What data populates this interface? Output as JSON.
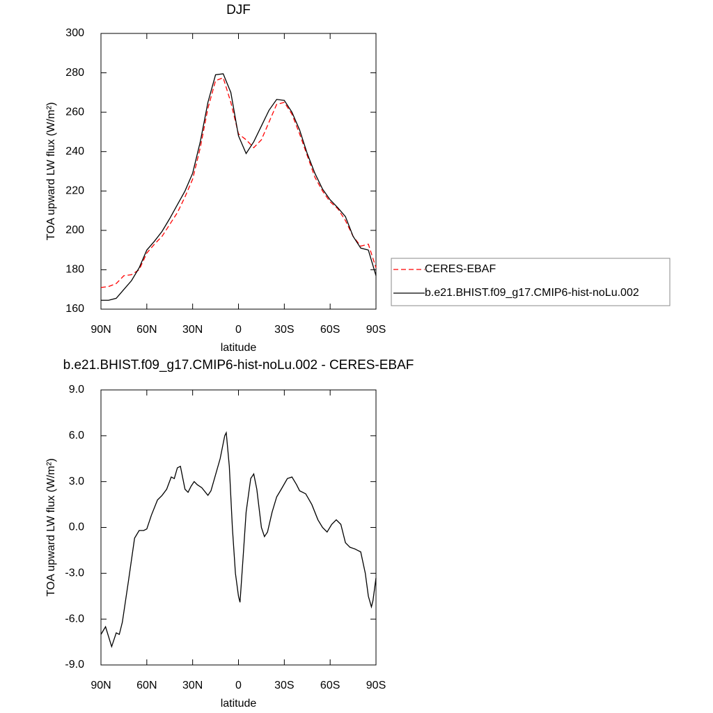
{
  "chart_data": [
    {
      "type": "line",
      "title": "DJF",
      "x_label": "latitude",
      "y_label": "TOA upward LW flux (W/m²)",
      "x": [
        90,
        85,
        80,
        75,
        70,
        65,
        60,
        55,
        50,
        45,
        40,
        35,
        30,
        25,
        20,
        15,
        10,
        5,
        0,
        -5,
        -10,
        -15,
        -20,
        -25,
        -30,
        -35,
        -40,
        -45,
        -50,
        -55,
        -60,
        -65,
        -70,
        -75,
        -80,
        -85,
        -90
      ],
      "xlim": [
        90,
        -90
      ],
      "xticks": [
        {
          "value": 90,
          "label": "90N"
        },
        {
          "value": 60,
          "label": "60N"
        },
        {
          "value": 30,
          "label": "30N"
        },
        0,
        {
          "value": -30,
          "label": "30S"
        },
        {
          "value": -60,
          "label": "60S"
        },
        {
          "value": -90,
          "label": "90S"
        }
      ],
      "ylim": [
        160,
        300
      ],
      "yticks": [
        160,
        180,
        200,
        220,
        240,
        260,
        280,
        300
      ],
      "legend": "right",
      "series": [
        {
          "name": "CERES-EBAF",
          "color": "#ff0000",
          "style": "dashed",
          "values": [
            171,
            171.5,
            173,
            177,
            177.5,
            180,
            188.5,
            193,
            197,
            203,
            209,
            217,
            226,
            242,
            262,
            276,
            277.5,
            265,
            249,
            246,
            242,
            246,
            255,
            264,
            265,
            259,
            249,
            238,
            227,
            220,
            214.5,
            211,
            205,
            197,
            192,
            193,
            181
          ]
        },
        {
          "name": "b.e21.BHIST.f09_g17.CMIP6-hist-noLu.002",
          "color": "#000000",
          "style": "solid",
          "values": [
            164.5,
            164.5,
            165.5,
            170,
            174.5,
            181,
            190,
            194.5,
            199.5,
            206,
            213,
            220,
            229,
            245,
            265,
            279,
            279.5,
            270,
            248,
            239,
            245,
            253,
            261,
            266.5,
            266,
            260,
            251,
            239,
            229,
            221,
            215.5,
            211.5,
            207,
            197,
            191,
            190,
            177
          ]
        }
      ]
    },
    {
      "type": "line",
      "title": "b.e21.BHIST.f09_g17.CMIP6-hist-noLu.002 - CERES-EBAF",
      "x_label": "latitude",
      "y_label": "TOA upward LW flux (W/m²)",
      "x": [
        90,
        87,
        83,
        80,
        78,
        76,
        72,
        68,
        65,
        62,
        60,
        57,
        53,
        50,
        47,
        44,
        42,
        40,
        38,
        35,
        33,
        31,
        29,
        27,
        24,
        20,
        18,
        12,
        9,
        8,
        6,
        4,
        2,
        0,
        -1,
        -3,
        -5,
        -8,
        -10,
        -12,
        -15,
        -17,
        -19,
        -22,
        -25,
        -28,
        -32,
        -35,
        -38,
        -40,
        -44,
        -48,
        -52,
        -55,
        -58,
        -61,
        -64,
        -67,
        -70,
        -73,
        -76,
        -78,
        -80,
        -83,
        -85,
        -87,
        -88,
        -90
      ],
      "xlim": [
        90,
        -90
      ],
      "xticks": [
        {
          "value": 90,
          "label": "90N"
        },
        {
          "value": 60,
          "label": "60N"
        },
        {
          "value": 30,
          "label": "30N"
        },
        0,
        {
          "value": -30,
          "label": "30S"
        },
        {
          "value": -60,
          "label": "60S"
        },
        {
          "value": -90,
          "label": "90S"
        }
      ],
      "ylim": [
        -9,
        9
      ],
      "yticks": [
        {
          "value": -9,
          "label": "-9.0"
        },
        {
          "value": -6,
          "label": "-6.0"
        },
        {
          "value": -3,
          "label": "-3.0"
        },
        {
          "value": 0,
          "label": "0.0"
        },
        {
          "value": 3,
          "label": "3.0"
        },
        {
          "value": 6,
          "label": "6.0"
        },
        {
          "value": 9,
          "label": "9.0"
        }
      ],
      "series": [
        {
          "color": "#000000",
          "style": "solid",
          "values": [
            -7,
            -6.5,
            -7.8,
            -6.9,
            -7,
            -6.2,
            -3.5,
            -0.7,
            -0.2,
            -0.2,
            -0.1,
            0.8,
            1.8,
            2.1,
            2.5,
            3.3,
            3.2,
            3.9,
            4.0,
            2.5,
            2.3,
            2.7,
            3.0,
            2.8,
            2.6,
            2.1,
            2.4,
            4.5,
            6.0,
            6.2,
            4.0,
            0,
            -3,
            -4.5,
            -4.9,
            -2,
            1,
            3.2,
            3.5,
            2.5,
            0,
            -0.6,
            -0.3,
            1,
            2.0,
            2.5,
            3.2,
            3.3,
            2.8,
            2.4,
            2.2,
            1.5,
            0.5,
            0,
            -0.3,
            0.2,
            0.5,
            0.2,
            -1,
            -1.3,
            -1.4,
            -1.5,
            -1.6,
            -3,
            -4.5,
            -5.2,
            -4.8,
            -3.3
          ]
        }
      ]
    }
  ]
}
